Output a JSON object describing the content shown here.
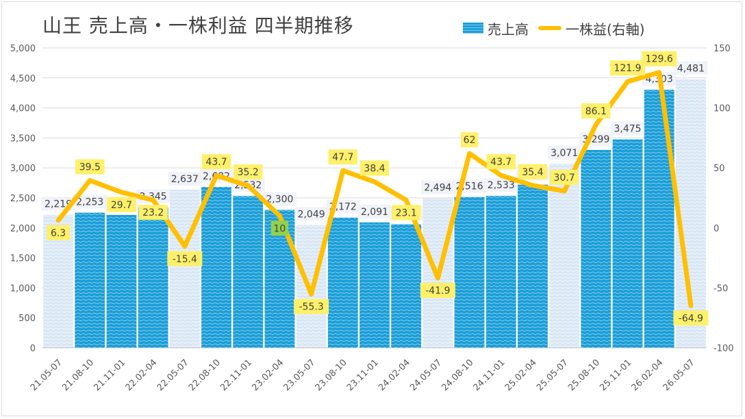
{
  "chart_data": {
    "type": "bar+line",
    "title": "山王 売上高・一株利益 四半期推移",
    "categories": [
      "21.05-07",
      "21.08-10",
      "21.11-01",
      "22.02-04",
      "22.05-07",
      "22.08-10",
      "22.11-01",
      "23.02-04",
      "23.05-07",
      "23.08-10",
      "23.11-01",
      "24.02-04",
      "24.05-07",
      "24.08-10",
      "24.11-01",
      "25.02-04",
      "25.05-07",
      "25.08-10",
      "25.11-01",
      "26.02-04",
      "26.05-07"
    ],
    "series": [
      {
        "name": "売上高",
        "type": "bar",
        "axis": "left",
        "values": [
          2219,
          2253,
          2216,
          2345,
          2637,
          2682,
          2532,
          2300,
          2049,
          2172,
          2091,
          2061,
          2494,
          2516,
          2533,
          2720,
          3071,
          3299,
          3475,
          4303,
          4481
        ],
        "labels": [
          "2,219",
          "2,253",
          "2,216",
          "2,345",
          "2,637",
          "2,682",
          "2,532",
          "2,300",
          "2,049",
          "2,172",
          "2,091",
          "2,061",
          "2,494",
          "2,516",
          "2,533",
          "2,720",
          "3,071",
          "3,299",
          "3,475",
          "4,303",
          "4,481"
        ],
        "forecast": [
          true,
          false,
          false,
          false,
          true,
          false,
          false,
          false,
          true,
          false,
          false,
          false,
          true,
          false,
          false,
          false,
          true,
          false,
          false,
          false,
          true
        ]
      },
      {
        "name": "一株益(右軸)",
        "type": "line",
        "axis": "right",
        "values": [
          6.3,
          39.5,
          29.7,
          23.2,
          -15.4,
          43.7,
          35.2,
          10,
          -55.3,
          47.7,
          38.4,
          23.1,
          -41.9,
          62,
          43.7,
          35.4,
          30.7,
          86.1,
          121.9,
          129.6,
          -64.9
        ],
        "labels": [
          "6.3",
          "39.5",
          "29.7",
          "23.2",
          "-15.4",
          "43.7",
          "35.2",
          "10",
          "-55.3",
          "47.7",
          "38.4",
          "23.1",
          "-41.9",
          "62",
          "43.7",
          "35.4",
          "30.7",
          "86.1",
          "121.9",
          "129.6",
          "-64.9"
        ]
      }
    ],
    "y_left": {
      "min": 0,
      "max": 5000,
      "ticks": [
        "0",
        "500",
        "1,000",
        "1,500",
        "2,000",
        "2,500",
        "3,000",
        "3,500",
        "4,000",
        "4,500",
        "5,000"
      ]
    },
    "y_right": {
      "min": -100,
      "max": 150,
      "ticks": [
        "-100",
        "-50",
        "0",
        "50",
        "100",
        "150"
      ]
    },
    "grid": true,
    "legend": "top-right",
    "colors": {
      "bar": "#1a9ed8",
      "bar_forecast": "#dde9f5",
      "line": "#ffc000",
      "eps_label_bg": "#fff06a",
      "eps_label_bg_inside": "#92d050",
      "text": "#404040",
      "grid": "#d9d9d9"
    }
  }
}
